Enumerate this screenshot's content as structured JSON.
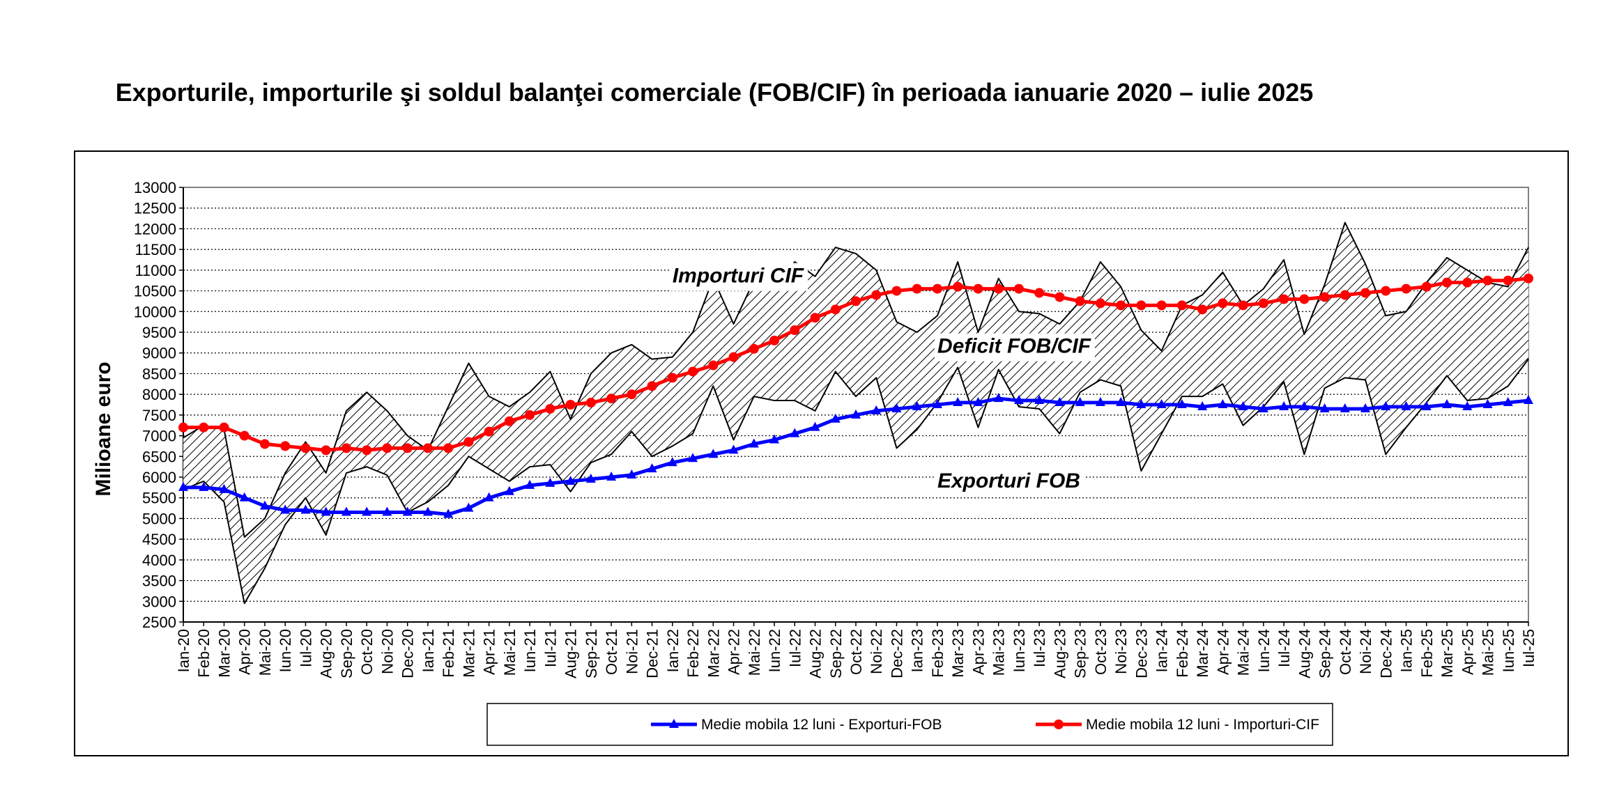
{
  "page": {
    "title": "Exporturile, importurile şi soldul balanţei comerciale (FOB/CIF) în perioada ianuarie 2020 – iulie 2025"
  },
  "chart_data": {
    "type": "line",
    "ylabel": "Milioane  euro",
    "xlabel": "",
    "ylim": [
      2500,
      13000
    ],
    "ytick_step": 500,
    "grid": true,
    "legend_position": "bottom",
    "categories": [
      "Ian-20",
      "Feb-20",
      "Mar-20",
      "Apr-20",
      "Mai-20",
      "Iun-20",
      "Iul-20",
      "Aug-20",
      "Sep-20",
      "Oct-20",
      "Noi-20",
      "Dec-20",
      "Ian-21",
      "Feb-21",
      "Mar-21",
      "Apr-21",
      "Mai-21",
      "Iun-21",
      "Iul-21",
      "Aug-21",
      "Sep-21",
      "Oct-21",
      "Noi-21",
      "Dec-21",
      "Ian-22",
      "Feb-22",
      "Mar-22",
      "Apr-22",
      "Mai-22",
      "Iun-22",
      "Iul-22",
      "Aug-22",
      "Sep-22",
      "Oct-22",
      "Noi-22",
      "Dec-22",
      "Ian-23",
      "Feb-23",
      "Mar-23",
      "Apr-23",
      "Mai-23",
      "Iun-23",
      "Iul-23",
      "Aug-23",
      "Sep-23",
      "Oct-23",
      "Noi-23",
      "Dec-23",
      "Ian-24",
      "Feb-24",
      "Mar-24",
      "Apr-24",
      "Mai-24",
      "Iun-24",
      "Iul-24",
      "Aug-24",
      "Sep-24",
      "Oct-24",
      "Noi-24",
      "Dec-24",
      "Ian-25",
      "Feb-25",
      "Mar-25",
      "Apr-25",
      "Mai-25",
      "Iun-25",
      "Iul-25"
    ],
    "series": [
      {
        "name": "Importuri CIF",
        "role": "monthly-imports",
        "color": "#000000",
        "values": [
          6950,
          7250,
          7150,
          4550,
          5000,
          6100,
          6850,
          6100,
          7600,
          8050,
          7600,
          7000,
          6650,
          7700,
          8750,
          7950,
          7700,
          8050,
          8550,
          7400,
          8500,
          9000,
          9200,
          8850,
          8900,
          9500,
          10800,
          9700,
          10750,
          10550,
          11200,
          10850,
          11550,
          11400,
          11000,
          9750,
          9500,
          9900,
          11200,
          9500,
          10800,
          10000,
          9950,
          9700,
          10250,
          11200,
          10600,
          9550,
          9050,
          10150,
          10400,
          10950,
          10150,
          10550,
          11250,
          9450,
          10650,
          12150,
          11150,
          9900,
          10000,
          10700,
          11300,
          11000,
          10700,
          10600,
          11550
        ]
      },
      {
        "name": "Exporturi FOB",
        "role": "monthly-exports",
        "color": "#000000",
        "values": [
          5700,
          5900,
          5400,
          2950,
          3800,
          4850,
          5500,
          4600,
          6100,
          6250,
          6050,
          5150,
          5400,
          5800,
          6500,
          6200,
          5900,
          6250,
          6300,
          5650,
          6350,
          6550,
          7100,
          6500,
          6750,
          7050,
          8200,
          6900,
          7950,
          7850,
          7850,
          7600,
          8550,
          7950,
          8400,
          6700,
          7150,
          7800,
          8650,
          7200,
          8600,
          7700,
          7650,
          7050,
          8050,
          8350,
          8200,
          6150,
          7050,
          7950,
          7950,
          8250,
          7250,
          7700,
          8300,
          6550,
          8150,
          8400,
          8350,
          6550,
          7200,
          7800,
          8450,
          7850,
          7900,
          8200,
          8850
        ]
      },
      {
        "name": "Medie mobila 12 luni - Importuri-CIF",
        "role": "ma-imports",
        "color": "#ff0000",
        "values": [
          7200,
          7200,
          7200,
          7000,
          6800,
          6750,
          6700,
          6650,
          6700,
          6650,
          6700,
          6700,
          6700,
          6700,
          6850,
          7100,
          7350,
          7500,
          7650,
          7750,
          7800,
          7900,
          8000,
          8200,
          8400,
          8550,
          8700,
          8900,
          9100,
          9300,
          9550,
          9850,
          10050,
          10250,
          10400,
          10500,
          10550,
          10550,
          10600,
          10550,
          10550,
          10550,
          10450,
          10350,
          10250,
          10200,
          10150,
          10150,
          10150,
          10150,
          10050,
          10200,
          10150,
          10200,
          10300,
          10300,
          10350,
          10400,
          10450,
          10500,
          10550,
          10600,
          10700,
          10700,
          10750,
          10750,
          10800
        ]
      },
      {
        "name": "Medie mobila 12 luni - Exporturi-FOB",
        "role": "ma-exports",
        "color": "#0000ff",
        "values": [
          5750,
          5750,
          5700,
          5500,
          5300,
          5200,
          5200,
          5150,
          5150,
          5150,
          5150,
          5150,
          5150,
          5100,
          5250,
          5500,
          5650,
          5800,
          5850,
          5900,
          5950,
          6000,
          6050,
          6200,
          6350,
          6450,
          6550,
          6650,
          6800,
          6900,
          7050,
          7200,
          7400,
          7500,
          7600,
          7650,
          7700,
          7750,
          7800,
          7800,
          7900,
          7850,
          7850,
          7800,
          7800,
          7800,
          7800,
          7750,
          7750,
          7750,
          7700,
          7750,
          7700,
          7650,
          7700,
          7700,
          7650,
          7650,
          7650,
          7700,
          7700,
          7700,
          7750,
          7700,
          7750,
          7800,
          7850
        ]
      }
    ],
    "annotations": [
      {
        "text": "Importuri CIF",
        "at_category": "Ian-22",
        "at_value": 10700
      },
      {
        "text": "Deficit FOB/CIF",
        "at_category": "Feb-23",
        "at_value": 9000
      },
      {
        "text": "Exporturi FOB",
        "at_category": "Feb-23",
        "at_value": 5750
      }
    ],
    "legend": [
      {
        "label": "Medie mobila 12 luni - Exporturi-FOB",
        "color": "#0000ff",
        "marker": "triangle"
      },
      {
        "label": "Medie mobila 12 luni - Importuri-CIF",
        "color": "#ff0000",
        "marker": "circle"
      }
    ]
  }
}
